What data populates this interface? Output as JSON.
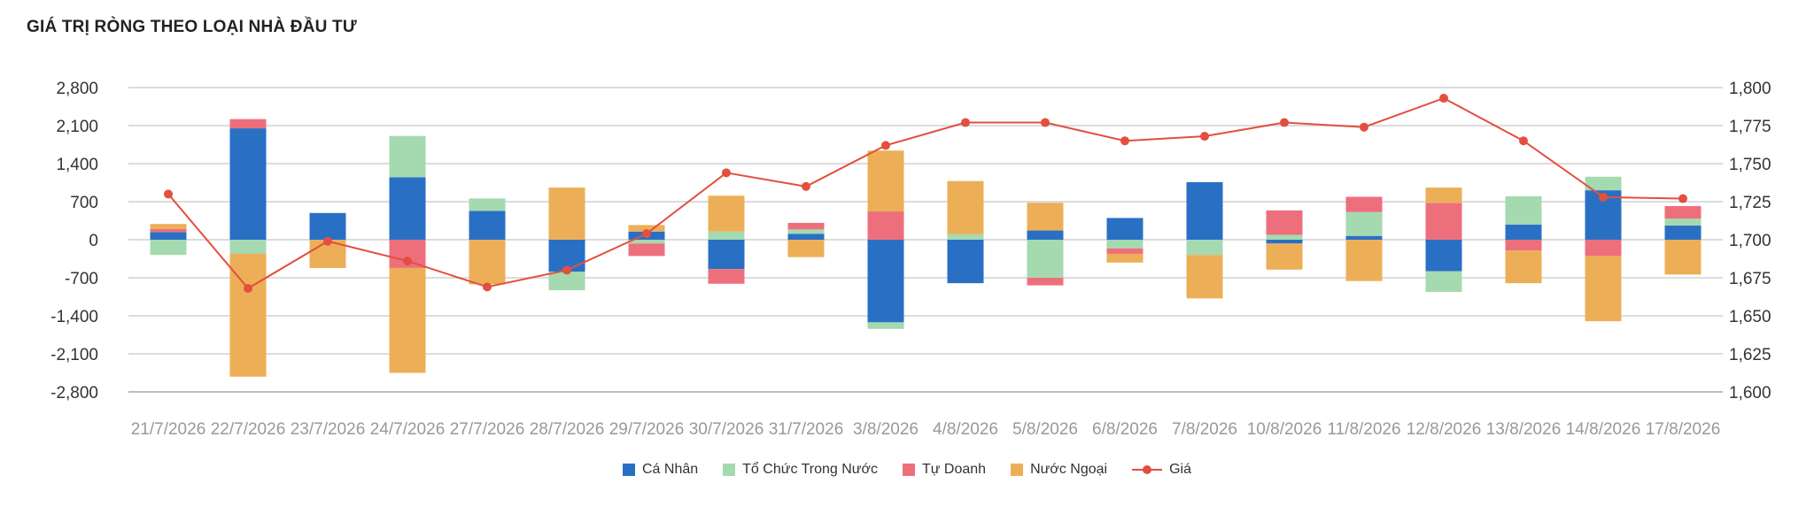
{
  "title": "GIÁ TRỊ RÒNG THEO LOẠI NHÀ ĐẦU TƯ",
  "chart_data": {
    "type": "bar",
    "stacked": true,
    "title": "GIÁ TRỊ RÒNG THEO LOẠI NHÀ ĐẦU TƯ",
    "categories": [
      "21/7/2026",
      "22/7/2026",
      "23/7/2026",
      "24/7/2026",
      "27/7/2026",
      "28/7/2026",
      "29/7/2026",
      "30/7/2026",
      "31/7/2026",
      "3/8/2026",
      "4/8/2026",
      "5/8/2026",
      "6/8/2026",
      "7/8/2026",
      "10/8/2026",
      "11/8/2026",
      "12/8/2026",
      "13/8/2026",
      "14/8/2026",
      "17/8/2026"
    ],
    "y_left": {
      "ylim": [
        -2800,
        2800
      ],
      "ticks": [
        2800,
        2100,
        1400,
        700,
        0,
        -700,
        -1400,
        -2100,
        -2800
      ],
      "tick_labels": [
        "2,800",
        "2,100",
        "1,400",
        "700",
        "0",
        "-700",
        "-1,400",
        "-2,100",
        "-2,800"
      ]
    },
    "y_right": {
      "ylim": [
        1600,
        1800
      ],
      "ticks": [
        1800,
        1775,
        1750,
        1725,
        1700,
        1675,
        1650,
        1625,
        1600
      ],
      "tick_labels": [
        "1,800",
        "1,775",
        "1,750",
        "1,725",
        "1,700",
        "1,675",
        "1,650",
        "1,625",
        "1,600"
      ]
    },
    "grid": true,
    "legend_position": "bottom",
    "series": [
      {
        "name": "Cá Nhân",
        "type": "bar",
        "color": "#2970c5",
        "values": [
          140,
          2050,
          490,
          1150,
          530,
          -590,
          150,
          -540,
          110,
          -1520,
          -800,
          170,
          400,
          1060,
          -70,
          70,
          -580,
          280,
          910,
          260
        ]
      },
      {
        "name": "Tổ Chức Trong Nước",
        "type": "bar",
        "color": "#a5d9b0",
        "values": [
          -280,
          -260,
          10,
          760,
          230,
          -340,
          -70,
          150,
          80,
          -120,
          100,
          -700,
          -160,
          -280,
          90,
          440,
          -380,
          520,
          250,
          130
        ]
      },
      {
        "name": "Tự Doanh",
        "type": "bar",
        "color": "#ee6f7c",
        "values": [
          60,
          170,
          0,
          -520,
          0,
          0,
          -230,
          -270,
          120,
          520,
          0,
          -140,
          -100,
          0,
          450,
          280,
          680,
          -200,
          -300,
          230
        ]
      },
      {
        "name": "Nước Ngoại",
        "type": "bar",
        "color": "#ecaf57",
        "values": [
          90,
          -2260,
          -520,
          -1930,
          -820,
          960,
          120,
          660,
          -320,
          1120,
          980,
          510,
          -160,
          -800,
          -480,
          -760,
          280,
          -600,
          -1200,
          -640
        ]
      },
      {
        "name": "Giá",
        "type": "line",
        "axis": "right",
        "color": "#e34f3f",
        "values": [
          1730,
          1668,
          1699,
          1686,
          1669,
          1680,
          1704,
          1744,
          1735,
          1762,
          1777,
          1777,
          1765,
          1768,
          1777,
          1774,
          1793,
          1765,
          1728,
          1727
        ]
      }
    ]
  }
}
